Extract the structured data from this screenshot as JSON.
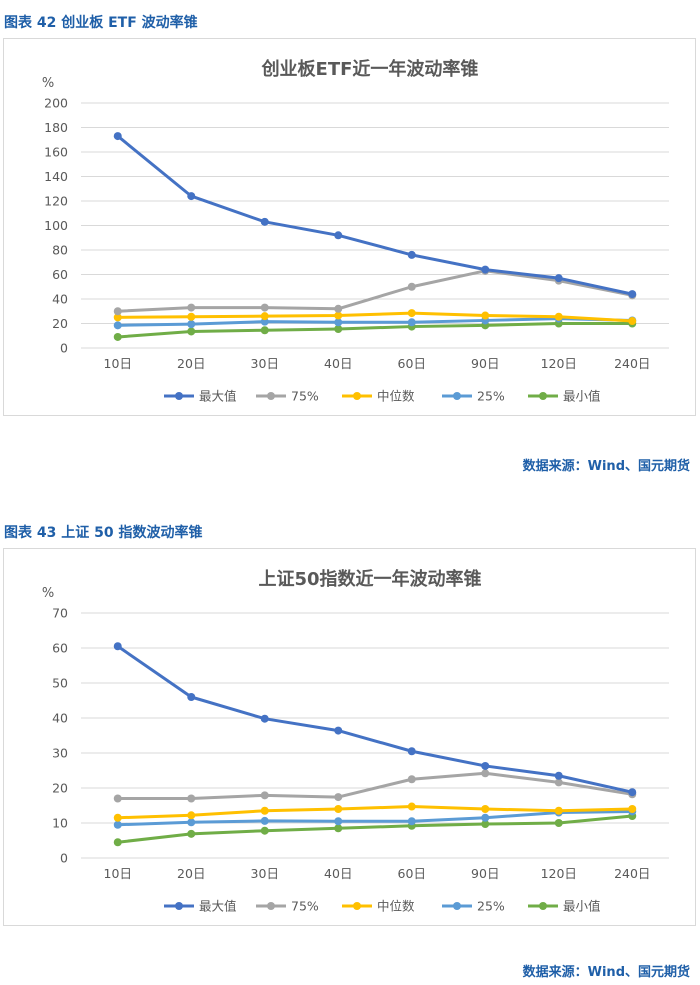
{
  "figures": [
    {
      "caption": "图表 42 创业板 ETF 波动率锥",
      "source": "数据来源：Wind、国元期货"
    },
    {
      "caption": "图表 43 上证 50 指数波动率锥",
      "source": "数据来源：Wind、国元期货"
    }
  ],
  "chart_data": [
    {
      "type": "line",
      "title": "创业板ETF近一年波动率锥",
      "ylabel": "%",
      "xlabel": "",
      "ylim": [
        0,
        200
      ],
      "ytick_step": 20,
      "grid": true,
      "legend_position": "bottom",
      "categories": [
        "10日",
        "20日",
        "30日",
        "40日",
        "60日",
        "90日",
        "120日",
        "240日"
      ],
      "series": [
        {
          "name": "最大值",
          "color": "#4472c4",
          "values": [
            173,
            124,
            103,
            92,
            76,
            64,
            57,
            44
          ]
        },
        {
          "name": "75%",
          "color": "#a5a5a5",
          "values": [
            30,
            33,
            33,
            32,
            50,
            63,
            55,
            43
          ]
        },
        {
          "name": "中位数",
          "color": "#ffc000",
          "values": [
            25,
            25.5,
            26,
            26.5,
            28.5,
            26.5,
            25.5,
            22
          ]
        },
        {
          "name": "25%",
          "color": "#5b9bd5",
          "values": [
            18.5,
            19.5,
            21.5,
            21,
            21,
            22.5,
            24,
            22.5
          ]
        },
        {
          "name": "最小值",
          "color": "#70ad47",
          "values": [
            9,
            13.5,
            14.5,
            15.5,
            17.5,
            18.5,
            20,
            20
          ]
        }
      ]
    },
    {
      "type": "line",
      "title": "上证50指数近一年波动率锥",
      "ylabel": "%",
      "xlabel": "",
      "ylim": [
        0,
        70
      ],
      "ytick_step": 10,
      "grid": true,
      "legend_position": "bottom",
      "categories": [
        "10日",
        "20日",
        "30日",
        "40日",
        "60日",
        "90日",
        "120日",
        "240日"
      ],
      "series": [
        {
          "name": "最大值",
          "color": "#4472c4",
          "values": [
            60.5,
            46,
            39.8,
            36.4,
            30.5,
            26.3,
            23.5,
            18.8
          ]
        },
        {
          "name": "75%",
          "color": "#a5a5a5",
          "values": [
            17,
            17,
            17.9,
            17.4,
            22.5,
            24.2,
            21.6,
            18.2
          ]
        },
        {
          "name": "中位数",
          "color": "#ffc000",
          "values": [
            11.5,
            12.2,
            13.5,
            14,
            14.7,
            14,
            13.5,
            14
          ]
        },
        {
          "name": "25%",
          "color": "#5b9bd5",
          "values": [
            9.5,
            10.2,
            10.6,
            10.5,
            10.5,
            11.5,
            13,
            13.3
          ]
        },
        {
          "name": "最小值",
          "color": "#70ad47",
          "values": [
            4.5,
            6.9,
            7.8,
            8.5,
            9.2,
            9.7,
            10,
            12
          ]
        }
      ]
    }
  ]
}
